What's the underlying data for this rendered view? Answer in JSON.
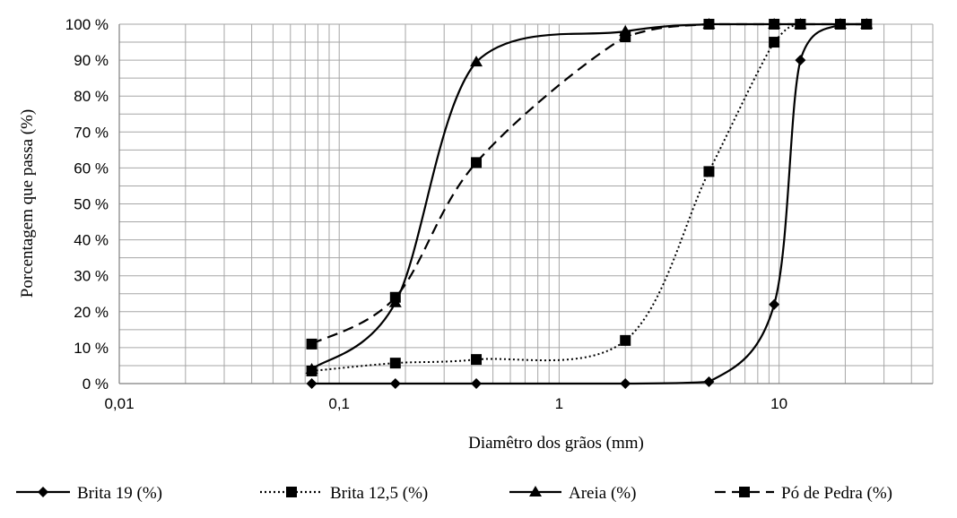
{
  "chart_data": {
    "type": "line",
    "title": "",
    "xlabel": "Diamêtro dos grãos (mm)",
    "ylabel": "Porcentagem que passa (%)",
    "x_scale": "log",
    "xlim": [
      0.01,
      50
    ],
    "ylim": [
      0,
      100
    ],
    "x_ticks": [
      0.01,
      0.1,
      1,
      10
    ],
    "x_tick_labels": [
      "0,01",
      "0,1",
      "1",
      "10"
    ],
    "y_ticks": [
      0,
      10,
      20,
      30,
      40,
      50,
      60,
      70,
      80,
      90,
      100
    ],
    "y_tick_labels": [
      "0 %",
      "10 %",
      "20 %",
      "30 %",
      "40 %",
      "50 %",
      "60 %",
      "70 %",
      "80 %",
      "90 %",
      "100 %"
    ],
    "grid": true,
    "legend_position": "bottom",
    "series": [
      {
        "name": "Brita 19 (%)",
        "marker": "diamond",
        "line_style": "solid",
        "x": [
          0.075,
          0.18,
          0.42,
          2.0,
          4.8,
          9.5,
          12.5,
          19.0,
          25.0
        ],
        "y": [
          0,
          0,
          0,
          0,
          0.5,
          22,
          90,
          100,
          100
        ]
      },
      {
        "name": "Brita 12,5 (%)",
        "marker": "square",
        "line_style": "dotted",
        "x": [
          0.075,
          0.18,
          0.42,
          2.0,
          4.8,
          9.5,
          12.5,
          19.0,
          25.0
        ],
        "y": [
          3.5,
          5.7,
          6.7,
          12,
          59,
          95,
          100,
          100,
          100
        ]
      },
      {
        "name": "Areia (%)",
        "marker": "triangle",
        "line_style": "solid",
        "x": [
          0.075,
          0.18,
          0.42,
          2.0,
          4.8,
          9.5,
          12.5,
          19.0,
          25.0
        ],
        "y": [
          4,
          22.5,
          89.5,
          98,
          100,
          100,
          100,
          100,
          100
        ]
      },
      {
        "name": "Pó de Pedra (%)",
        "marker": "square",
        "line_style": "dashed",
        "x": [
          0.075,
          0.18,
          0.42,
          2.0,
          4.8,
          9.5,
          12.5,
          19.0,
          25.0
        ],
        "y": [
          11,
          24,
          61.5,
          96.5,
          100,
          100,
          100,
          100,
          100
        ]
      }
    ]
  }
}
